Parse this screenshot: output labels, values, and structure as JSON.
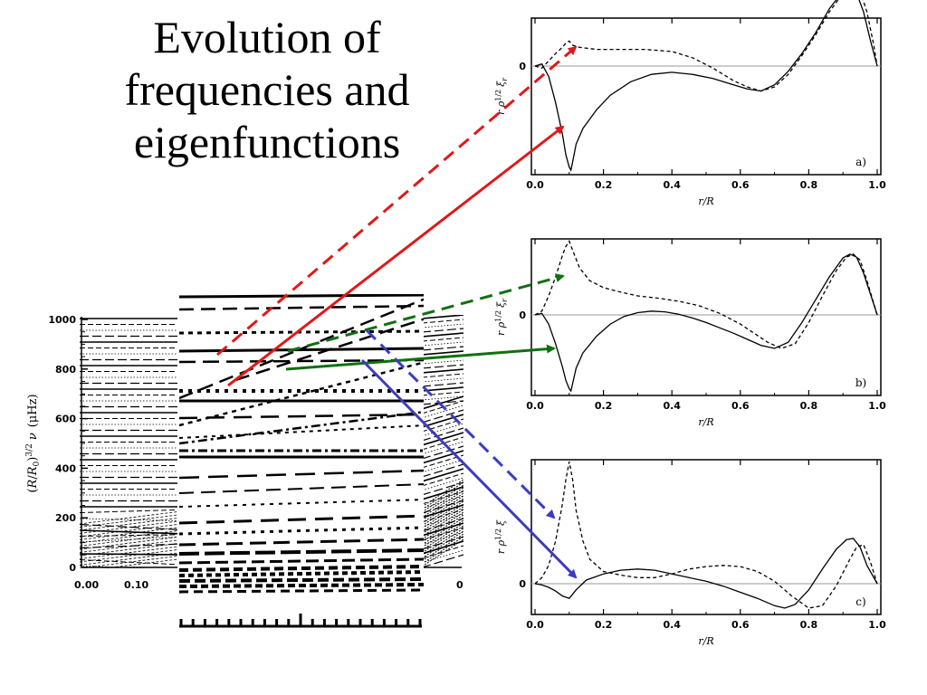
{
  "title_lines": [
    "Evolution of",
    "frequencies and",
    "eigenfunctions"
  ],
  "colors": {
    "red": "#e01818",
    "green": "#107010",
    "blue": "#3c3cc0",
    "axis": "#000000",
    "zero_line": "#999999"
  },
  "chart_data": [
    {
      "type": "line",
      "name": "frequency-evolution",
      "ylabel": "(R/R0)^3/2 ν (μHz)",
      "ylabel_parts": {
        "a": "(",
        "R": "R",
        "slash": "/",
        "R0": "R",
        "zero": "0",
        "close": ")",
        "exp": "3/2",
        "nu": "ν",
        "unit": "(μHz)"
      },
      "yticks": [
        "1000",
        "800",
        "600",
        "400",
        "200",
        "0"
      ],
      "ytick_values": [
        1000,
        800,
        600,
        400,
        200,
        0
      ],
      "xticks": [
        "0.00",
        "0.10"
      ],
      "xtick_values": [
        0.0,
        0.1
      ],
      "xticks_right": [
        "0"
      ],
      "ylim": [
        0,
        1000
      ]
    },
    {
      "type": "line",
      "name": "eigenfunction-a",
      "label": "a)",
      "ylabel": "r ρ^1/2 ξr",
      "ylabel_parts": {
        "r": "r",
        "rho": "ρ",
        "exp": "1/2",
        "xi": "ξ",
        "sub": "r"
      },
      "xlabel": "r/R",
      "xticks": [
        "0.0",
        "0.2",
        "0.4",
        "0.6",
        "0.8",
        "1.0"
      ],
      "xtick_values": [
        0.0,
        0.2,
        0.4,
        0.6,
        0.8,
        1.0
      ],
      "ytick": "0",
      "series": [
        {
          "name": "solid",
          "x": [
            0,
            0.02,
            0.04,
            0.06,
            0.08,
            0.09,
            0.1,
            0.105,
            0.11,
            0.12,
            0.14,
            0.18,
            0.22,
            0.28,
            0.34,
            0.4,
            0.46,
            0.52,
            0.58,
            0.62,
            0.66,
            0.7,
            0.74,
            0.78,
            0.82,
            0.86,
            0.9,
            0.92,
            0.94,
            0.96,
            0.98,
            1.0
          ],
          "y": [
            0,
            0.02,
            -0.1,
            -0.35,
            -0.65,
            -0.85,
            -0.97,
            -1.0,
            -0.92,
            -0.75,
            -0.6,
            -0.42,
            -0.28,
            -0.15,
            -0.08,
            -0.06,
            -0.08,
            -0.12,
            -0.18,
            -0.22,
            -0.24,
            -0.18,
            -0.05,
            0.12,
            0.32,
            0.55,
            0.72,
            0.75,
            0.7,
            0.52,
            0.25,
            0
          ]
        },
        {
          "name": "dashed",
          "x": [
            0,
            0.02,
            0.04,
            0.06,
            0.08,
            0.09,
            0.1,
            0.11,
            0.13,
            0.18,
            0.25,
            0.32,
            0.4,
            0.46,
            0.52,
            0.58,
            0.62,
            0.66,
            0.7,
            0.74,
            0.78,
            0.82,
            0.86,
            0.9,
            0.93,
            0.95,
            0.97,
            0.99,
            1.0
          ],
          "y": [
            0,
            -0.02,
            0.05,
            0.12,
            0.18,
            0.22,
            0.24,
            0.2,
            0.18,
            0.16,
            0.16,
            0.16,
            0.14,
            0.08,
            -0.02,
            -0.14,
            -0.2,
            -0.24,
            -0.2,
            -0.08,
            0.1,
            0.3,
            0.52,
            0.7,
            0.76,
            0.72,
            0.52,
            0.2,
            0
          ]
        }
      ]
    },
    {
      "type": "line",
      "name": "eigenfunction-b",
      "label": "b)",
      "ylabel": "r ρ^1/2 ξr",
      "ylabel_parts": {
        "r": "r",
        "rho": "ρ",
        "exp": "1/2",
        "xi": "ξ",
        "sub": "r"
      },
      "xlabel": "r/R",
      "xticks": [
        "0.0",
        "0.2",
        "0.4",
        "0.6",
        "0.8",
        "1.0"
      ],
      "xtick_values": [
        0.0,
        0.2,
        0.4,
        0.6,
        0.8,
        1.0
      ],
      "ytick": "0",
      "series": [
        {
          "name": "solid",
          "x": [
            0,
            0.02,
            0.04,
            0.06,
            0.08,
            0.09,
            0.1,
            0.105,
            0.11,
            0.12,
            0.14,
            0.18,
            0.22,
            0.26,
            0.3,
            0.34,
            0.38,
            0.42,
            0.46,
            0.5,
            0.54,
            0.58,
            0.62,
            0.66,
            0.7,
            0.74,
            0.78,
            0.82,
            0.86,
            0.9,
            0.92,
            0.94,
            0.96,
            0.98,
            1.0
          ],
          "y": [
            0,
            0.02,
            -0.12,
            -0.38,
            -0.68,
            -0.86,
            -0.97,
            -1.0,
            -0.9,
            -0.7,
            -0.5,
            -0.28,
            -0.12,
            -0.02,
            0.03,
            0.05,
            0.04,
            0.01,
            -0.04,
            -0.1,
            -0.17,
            -0.24,
            -0.32,
            -0.4,
            -0.44,
            -0.36,
            -0.1,
            0.2,
            0.5,
            0.75,
            0.8,
            0.76,
            0.55,
            0.28,
            0
          ]
        },
        {
          "name": "dashed",
          "x": [
            0,
            0.02,
            0.04,
            0.06,
            0.08,
            0.09,
            0.1,
            0.11,
            0.13,
            0.16,
            0.2,
            0.25,
            0.3,
            0.36,
            0.42,
            0.48,
            0.54,
            0.6,
            0.64,
            0.68,
            0.72,
            0.76,
            0.8,
            0.84,
            0.88,
            0.91,
            0.93,
            0.95,
            0.97,
            0.99,
            1.0
          ],
          "y": [
            0,
            0.05,
            0.25,
            0.5,
            0.78,
            0.9,
            0.97,
            0.85,
            0.62,
            0.45,
            0.36,
            0.3,
            0.25,
            0.22,
            0.18,
            0.12,
            0.02,
            -0.12,
            -0.24,
            -0.36,
            -0.44,
            -0.38,
            -0.1,
            0.25,
            0.58,
            0.76,
            0.8,
            0.72,
            0.45,
            0.15,
            0
          ]
        }
      ]
    },
    {
      "type": "line",
      "name": "eigenfunction-c",
      "label": "c)",
      "ylabel": "r ρ^1/2 ξ",
      "ylabel_parts": {
        "r": "r",
        "rho": "ρ",
        "exp": "1/2",
        "xi": "ξ",
        "sub": ""
      },
      "xlabel": "r/R",
      "xticks": [
        "0.0",
        "0.2",
        "0.4",
        "0.6",
        "0.8",
        "1.0"
      ],
      "xtick_values": [
        0.0,
        0.2,
        0.4,
        0.6,
        0.8,
        1.0
      ],
      "ytick": "0",
      "series": [
        {
          "name": "solid",
          "x": [
            0,
            0.02,
            0.04,
            0.06,
            0.08,
            0.1,
            0.12,
            0.15,
            0.2,
            0.25,
            0.3,
            0.35,
            0.4,
            0.45,
            0.5,
            0.55,
            0.6,
            0.65,
            0.7,
            0.73,
            0.76,
            0.8,
            0.84,
            0.88,
            0.91,
            0.93,
            0.95,
            0.97,
            1.0
          ],
          "y": [
            0,
            -0.01,
            -0.03,
            -0.06,
            -0.1,
            -0.12,
            -0.05,
            0.03,
            0.08,
            0.11,
            0.12,
            0.11,
            0.08,
            0.05,
            0.02,
            -0.02,
            -0.07,
            -0.12,
            -0.18,
            -0.2,
            -0.17,
            -0.05,
            0.12,
            0.28,
            0.36,
            0.37,
            0.3,
            0.15,
            0
          ]
        },
        {
          "name": "dashed",
          "x": [
            0,
            0.02,
            0.04,
            0.06,
            0.08,
            0.09,
            0.1,
            0.11,
            0.12,
            0.14,
            0.16,
            0.2,
            0.25,
            0.3,
            0.35,
            0.4,
            0.45,
            0.5,
            0.55,
            0.6,
            0.65,
            0.7,
            0.75,
            0.8,
            0.84,
            0.88,
            0.92,
            0.94,
            0.96,
            0.98,
            1.0
          ],
          "y": [
            0,
            0.05,
            0.15,
            0.35,
            0.65,
            0.85,
            1.0,
            0.85,
            0.6,
            0.35,
            0.2,
            0.1,
            0.07,
            0.05,
            0.05,
            0.08,
            0.12,
            0.14,
            0.15,
            0.14,
            0.1,
            0.02,
            -0.1,
            -0.2,
            -0.18,
            -0.02,
            0.2,
            0.3,
            0.32,
            0.18,
            0
          ]
        }
      ]
    }
  ]
}
